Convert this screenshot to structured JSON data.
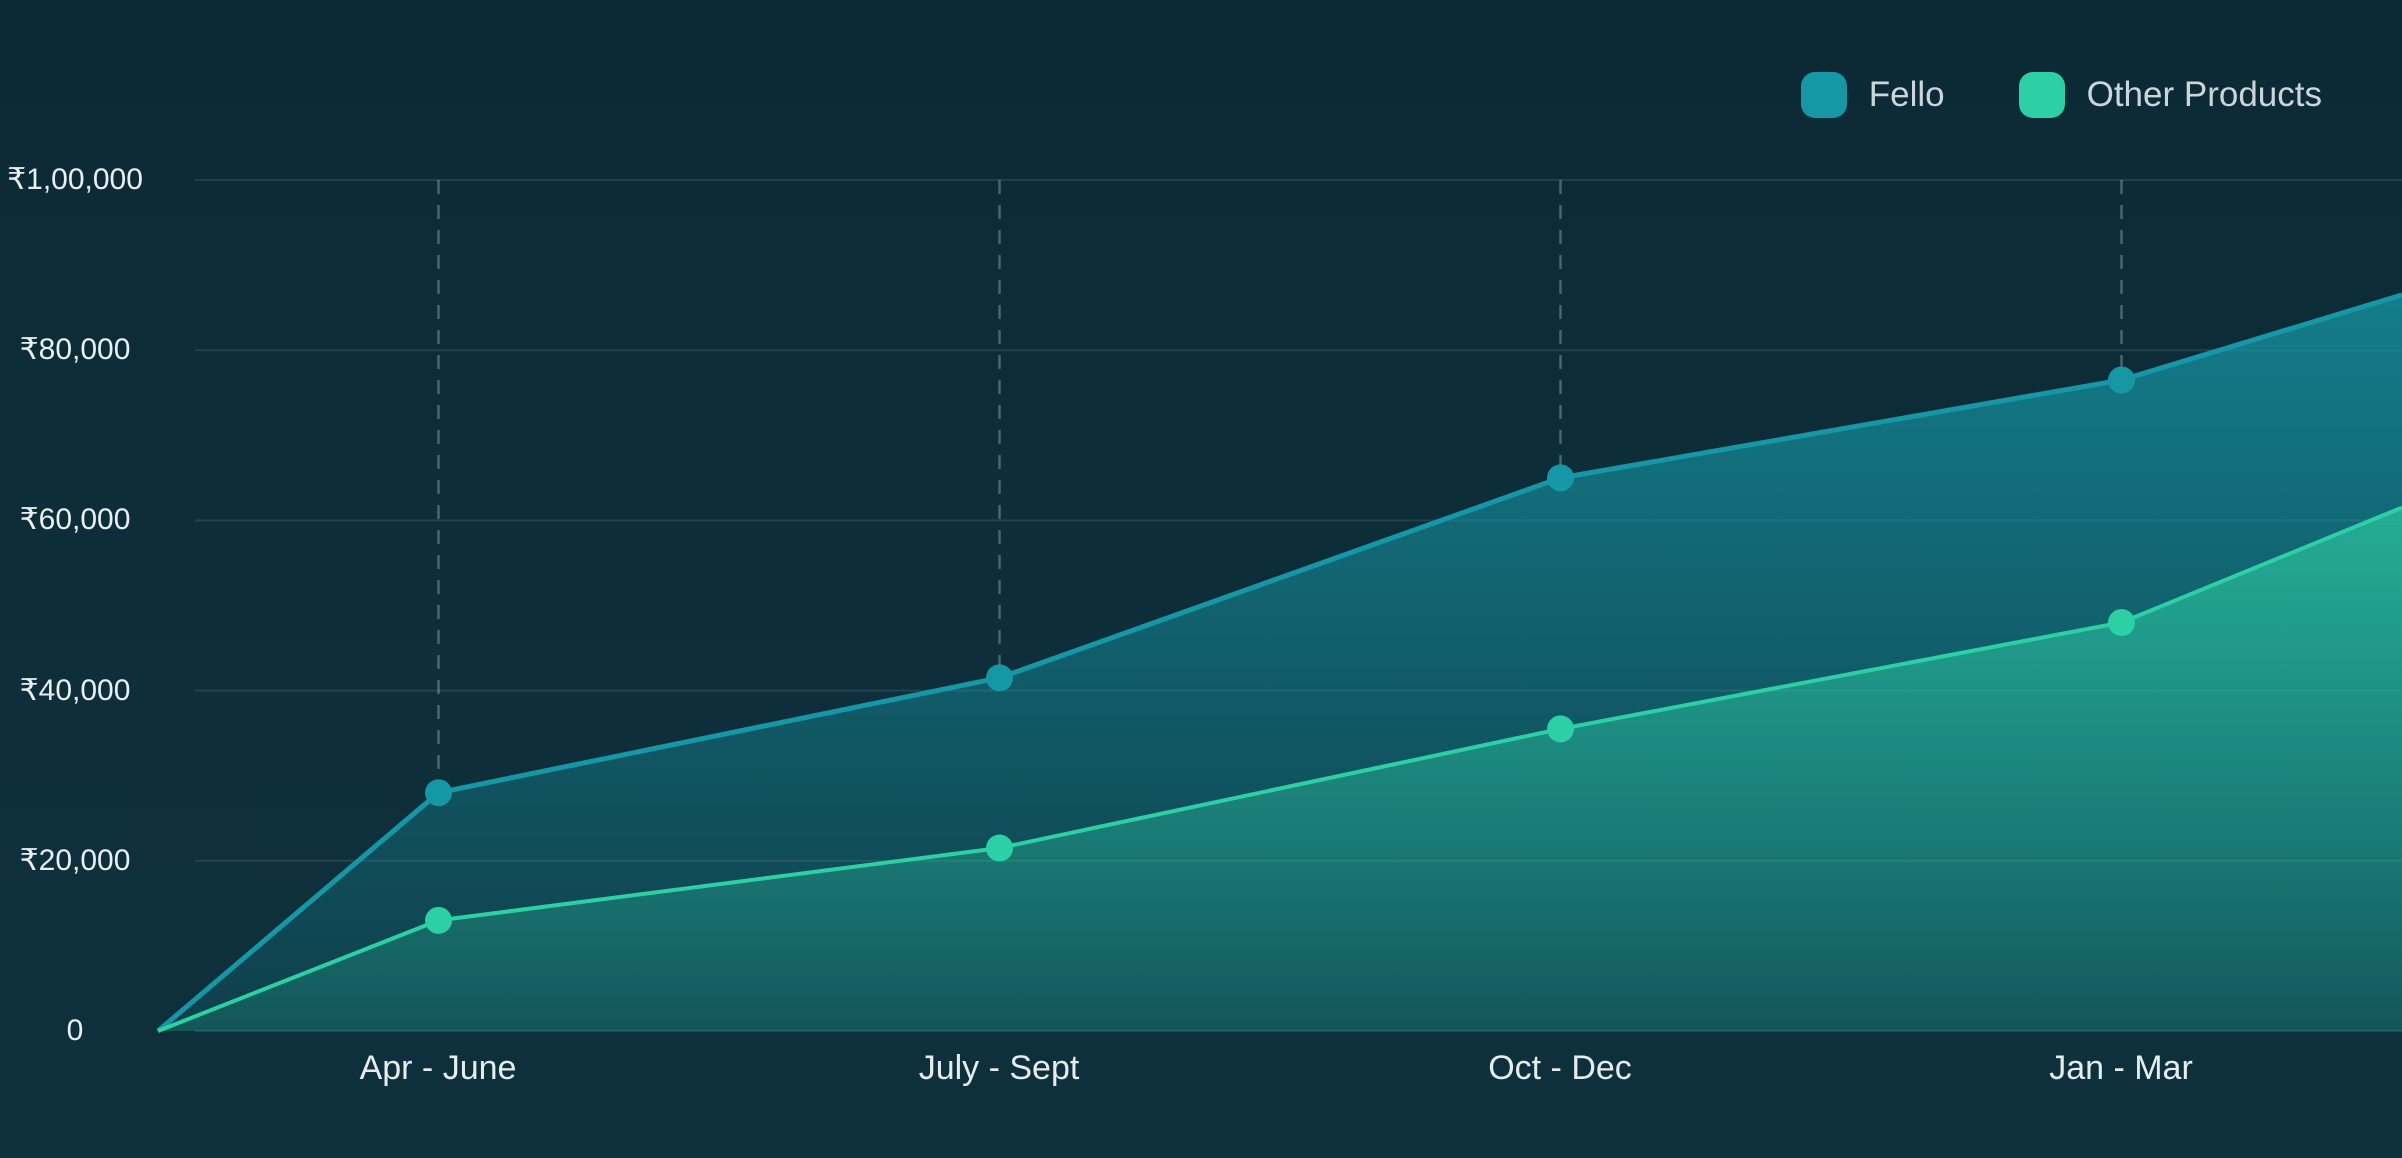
{
  "legend": {
    "position": "top-right",
    "items": [
      {
        "label": "Fello",
        "color": "#1697a6"
      },
      {
        "label": "Other Products",
        "color": "#2dd0a5"
      }
    ]
  },
  "colors": {
    "background_top": "#0c2a35",
    "background_bottom": "#0e313d",
    "grid_line": "rgba(200,222,230,0.12)",
    "vertical_dash": "rgba(190,212,220,0.34)",
    "axis_text": "#e9eff2",
    "legend_text": "#ccd6da",
    "fello": "#1697a6",
    "other_products": "#2dd0a5"
  },
  "chart_data": {
    "type": "area",
    "title": "",
    "xlabel": "",
    "ylabel": "",
    "currency_symbol": "₹",
    "categories": [
      "Apr - June",
      "July - Sept",
      "Oct - Dec",
      "Jan - Mar"
    ],
    "x_points": [
      "axis-start",
      "Apr - June",
      "July - Sept",
      "Oct - Dec",
      "Jan - Mar",
      "axis-end"
    ],
    "series": [
      {
        "name": "Fello",
        "color": "#1697a6",
        "values": [
          0,
          28000,
          41500,
          65000,
          76500,
          86500
        ]
      },
      {
        "name": "Other Products",
        "color": "#2dd0a5",
        "values": [
          0,
          13000,
          21500,
          35500,
          48000,
          61500
        ]
      }
    ],
    "y_ticks": [
      "₹1,00,000",
      "₹80,000",
      "₹60,000",
      "₹40,000",
      "₹20,000",
      "0"
    ],
    "ylim": [
      0,
      100000
    ],
    "grid": "horizontal solid lines; vertical dashed guide at each quarter ending at Fello point",
    "legend_entries": [
      "Fello",
      "Other Products"
    ],
    "legend_position": "top-right",
    "area_style": "vertical gradient fill fading downward, series color at top"
  }
}
